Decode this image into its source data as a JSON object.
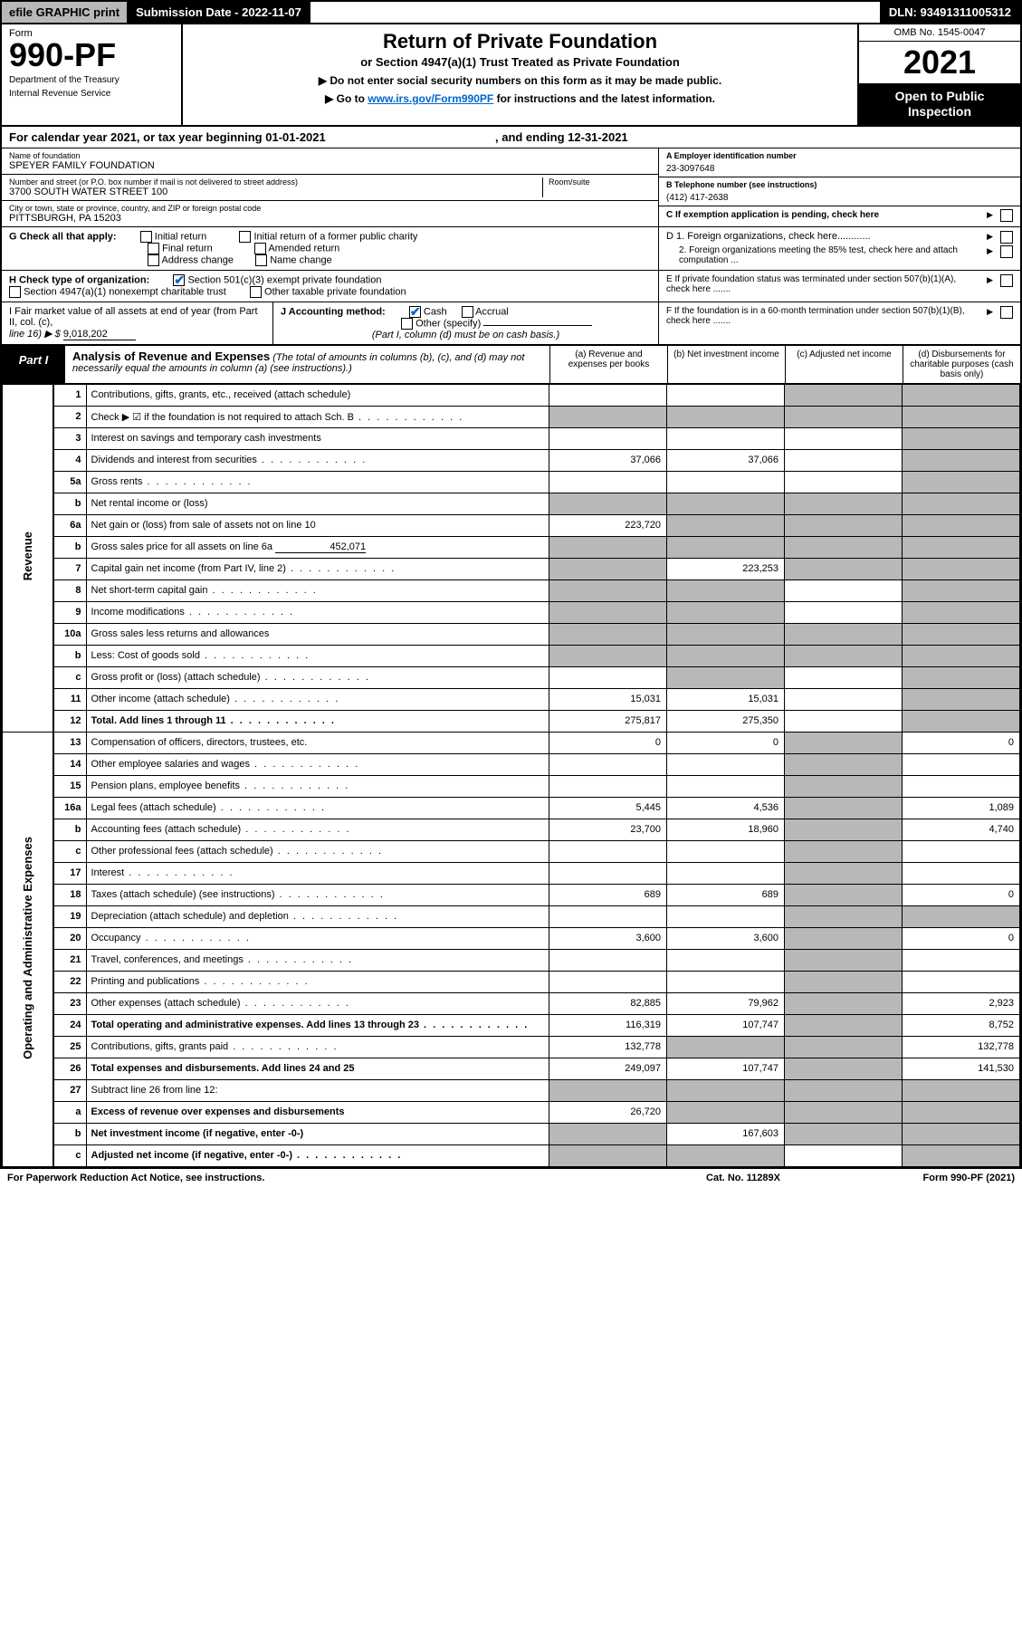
{
  "topbar": {
    "efile": "efile GRAPHIC print",
    "subdate_label": "Submission Date - ",
    "subdate": "2022-11-07",
    "dln_label": "DLN: ",
    "dln": "93491311005312"
  },
  "header": {
    "form_word": "Form",
    "form_num": "990-PF",
    "dept1": "Department of the Treasury",
    "dept2": "Internal Revenue Service",
    "title": "Return of Private Foundation",
    "subtitle1": "or Section 4947(a)(1) Trust Treated as Private Foundation",
    "subtitle2a": "▶ Do not enter social security numbers on this form as it may be made public.",
    "subtitle2b": "▶ Go to ",
    "link": "www.irs.gov/Form990PF",
    "subtitle2c": " for instructions and the latest information.",
    "omb": "OMB No. 1545-0047",
    "year": "2021",
    "open": "Open to Public Inspection"
  },
  "calrow": {
    "text1": "For calendar year 2021, or tax year beginning ",
    "begin": "01-01-2021",
    "text2": " , and ending ",
    "end": "12-31-2021"
  },
  "info": {
    "name_lbl": "Name of foundation",
    "name": "SPEYER FAMILY FOUNDATION",
    "addr_lbl": "Number and street (or P.O. box number if mail is not delivered to street address)",
    "addr": "3700 SOUTH WATER STREET 100",
    "room_lbl": "Room/suite",
    "city_lbl": "City or town, state or province, country, and ZIP or foreign postal code",
    "city": "PITTSBURGH, PA  15203",
    "ein_lbl": "A Employer identification number",
    "ein": "23-3097648",
    "tel_lbl": "B Telephone number (see instructions)",
    "tel": "(412) 417-2638",
    "c_lbl": "C If exemption application is pending, check here",
    "d1": "D 1. Foreign organizations, check here............",
    "d2": "2. Foreign organizations meeting the 85% test, check here and attach computation ...",
    "e": "E  If private foundation status was terminated under section 507(b)(1)(A), check here .......",
    "f": "F  If the foundation is in a 60-month termination under section 507(b)(1)(B), check here ......."
  },
  "g": {
    "label": "G Check all that apply:",
    "opts": [
      "Initial return",
      "Final return",
      "Address change",
      "Initial return of a former public charity",
      "Amended return",
      "Name change"
    ]
  },
  "h": {
    "label": "H Check type of organization:",
    "opt1": "Section 501(c)(3) exempt private foundation",
    "opt2": "Section 4947(a)(1) nonexempt charitable trust",
    "opt3": "Other taxable private foundation"
  },
  "i": {
    "label1": "I Fair market value of all assets at end of year (from Part II, col. (c),",
    "label2": "line 16) ▶ $",
    "value": "9,018,202"
  },
  "j": {
    "label": "J Accounting method:",
    "cash": "Cash",
    "accrual": "Accrual",
    "other": "Other (specify)",
    "note": "(Part I, column (d) must be on cash basis.)"
  },
  "part1": {
    "tab": "Part I",
    "title": "Analysis of Revenue and Expenses",
    "note": " (The total of amounts in columns (b), (c), and (d) may not necessarily equal the amounts in column (a) (see instructions).)",
    "ca": "(a)  Revenue and expenses per books",
    "cb": "(b)  Net investment income",
    "cc": "(c)  Adjusted net income",
    "cd": "(d)  Disbursements for charitable purposes (cash basis only)"
  },
  "sidelabels": {
    "rev": "Revenue",
    "exp": "Operating and Administrative Expenses"
  },
  "rows": [
    {
      "n": "1",
      "d": "Contributions, gifts, grants, etc., received (attach schedule)",
      "a": "",
      "b": "",
      "c": "g",
      "dd": "g"
    },
    {
      "n": "2",
      "d": "Check ▶ ☑ if the foundation is not required to attach Sch. B",
      "dots": true,
      "a": "g",
      "b": "g",
      "c": "g",
      "dd": "g"
    },
    {
      "n": "3",
      "d": "Interest on savings and temporary cash investments",
      "a": "",
      "b": "",
      "c": "",
      "dd": "g"
    },
    {
      "n": "4",
      "d": "Dividends and interest from securities",
      "dots": true,
      "a": "37,066",
      "b": "37,066",
      "c": "",
      "dd": "g"
    },
    {
      "n": "5a",
      "d": "Gross rents",
      "dots": true,
      "a": "",
      "b": "",
      "c": "",
      "dd": "g"
    },
    {
      "n": "b",
      "d": "Net rental income or (loss)",
      "a": "g",
      "b": "g",
      "c": "g",
      "dd": "g"
    },
    {
      "n": "6a",
      "d": "Net gain or (loss) from sale of assets not on line 10",
      "a": "223,720",
      "b": "g",
      "c": "g",
      "dd": "g"
    },
    {
      "n": "b",
      "d": "Gross sales price for all assets on line 6a",
      "inline": "452,071",
      "a": "g",
      "b": "g",
      "c": "g",
      "dd": "g"
    },
    {
      "n": "7",
      "d": "Capital gain net income (from Part IV, line 2)",
      "dots": true,
      "a": "g",
      "b": "223,253",
      "c": "g",
      "dd": "g"
    },
    {
      "n": "8",
      "d": "Net short-term capital gain",
      "dots": true,
      "a": "g",
      "b": "g",
      "c": "",
      "dd": "g"
    },
    {
      "n": "9",
      "d": "Income modifications",
      "dots": true,
      "a": "g",
      "b": "g",
      "c": "",
      "dd": "g"
    },
    {
      "n": "10a",
      "d": "Gross sales less returns and allowances",
      "a": "g",
      "b": "g",
      "c": "g",
      "dd": "g"
    },
    {
      "n": "b",
      "d": "Less: Cost of goods sold",
      "dots": true,
      "a": "g",
      "b": "g",
      "c": "g",
      "dd": "g"
    },
    {
      "n": "c",
      "d": "Gross profit or (loss) (attach schedule)",
      "dots": true,
      "a": "",
      "b": "g",
      "c": "",
      "dd": "g"
    },
    {
      "n": "11",
      "d": "Other income (attach schedule)",
      "dots": true,
      "a": "15,031",
      "b": "15,031",
      "c": "",
      "dd": "g"
    },
    {
      "n": "12",
      "d": "Total. Add lines 1 through 11",
      "dots": true,
      "bold": true,
      "a": "275,817",
      "b": "275,350",
      "c": "",
      "dd": "g"
    },
    {
      "n": "13",
      "d": "Compensation of officers, directors, trustees, etc.",
      "a": "0",
      "b": "0",
      "c": "g",
      "dd": "0"
    },
    {
      "n": "14",
      "d": "Other employee salaries and wages",
      "dots": true,
      "a": "",
      "b": "",
      "c": "g",
      "dd": ""
    },
    {
      "n": "15",
      "d": "Pension plans, employee benefits",
      "dots": true,
      "a": "",
      "b": "",
      "c": "g",
      "dd": ""
    },
    {
      "n": "16a",
      "d": "Legal fees (attach schedule)",
      "dots": true,
      "a": "5,445",
      "b": "4,536",
      "c": "g",
      "dd": "1,089"
    },
    {
      "n": "b",
      "d": "Accounting fees (attach schedule)",
      "dots": true,
      "a": "23,700",
      "b": "18,960",
      "c": "g",
      "dd": "4,740"
    },
    {
      "n": "c",
      "d": "Other professional fees (attach schedule)",
      "dots": true,
      "a": "",
      "b": "",
      "c": "g",
      "dd": ""
    },
    {
      "n": "17",
      "d": "Interest",
      "dots": true,
      "a": "",
      "b": "",
      "c": "g",
      "dd": ""
    },
    {
      "n": "18",
      "d": "Taxes (attach schedule) (see instructions)",
      "dots": true,
      "a": "689",
      "b": "689",
      "c": "g",
      "dd": "0"
    },
    {
      "n": "19",
      "d": "Depreciation (attach schedule) and depletion",
      "dots": true,
      "a": "",
      "b": "",
      "c": "g",
      "dd": "g"
    },
    {
      "n": "20",
      "d": "Occupancy",
      "dots": true,
      "a": "3,600",
      "b": "3,600",
      "c": "g",
      "dd": "0"
    },
    {
      "n": "21",
      "d": "Travel, conferences, and meetings",
      "dots": true,
      "a": "",
      "b": "",
      "c": "g",
      "dd": ""
    },
    {
      "n": "22",
      "d": "Printing and publications",
      "dots": true,
      "a": "",
      "b": "",
      "c": "g",
      "dd": ""
    },
    {
      "n": "23",
      "d": "Other expenses (attach schedule)",
      "dots": true,
      "a": "82,885",
      "b": "79,962",
      "c": "g",
      "dd": "2,923"
    },
    {
      "n": "24",
      "d": "Total operating and administrative expenses. Add lines 13 through 23",
      "dots": true,
      "bold": true,
      "a": "116,319",
      "b": "107,747",
      "c": "g",
      "dd": "8,752"
    },
    {
      "n": "25",
      "d": "Contributions, gifts, grants paid",
      "dots": true,
      "a": "132,778",
      "b": "g",
      "c": "g",
      "dd": "132,778"
    },
    {
      "n": "26",
      "d": "Total expenses and disbursements. Add lines 24 and 25",
      "bold": true,
      "a": "249,097",
      "b": "107,747",
      "c": "g",
      "dd": "141,530"
    },
    {
      "n": "27",
      "d": "Subtract line 26 from line 12:",
      "a": "g",
      "b": "g",
      "c": "g",
      "dd": "g"
    },
    {
      "n": "a",
      "d": "Excess of revenue over expenses and disbursements",
      "bold": true,
      "a": "26,720",
      "b": "g",
      "c": "g",
      "dd": "g"
    },
    {
      "n": "b",
      "d": "Net investment income (if negative, enter -0-)",
      "bold": true,
      "a": "g",
      "b": "167,603",
      "c": "g",
      "dd": "g"
    },
    {
      "n": "c",
      "d": "Adjusted net income (if negative, enter -0-)",
      "dots": true,
      "bold": true,
      "a": "g",
      "b": "g",
      "c": "",
      "dd": "g"
    }
  ],
  "footer": {
    "f1": "For Paperwork Reduction Act Notice, see instructions.",
    "f2": "Cat. No. 11289X",
    "f3": "Form 990-PF (2021)"
  }
}
